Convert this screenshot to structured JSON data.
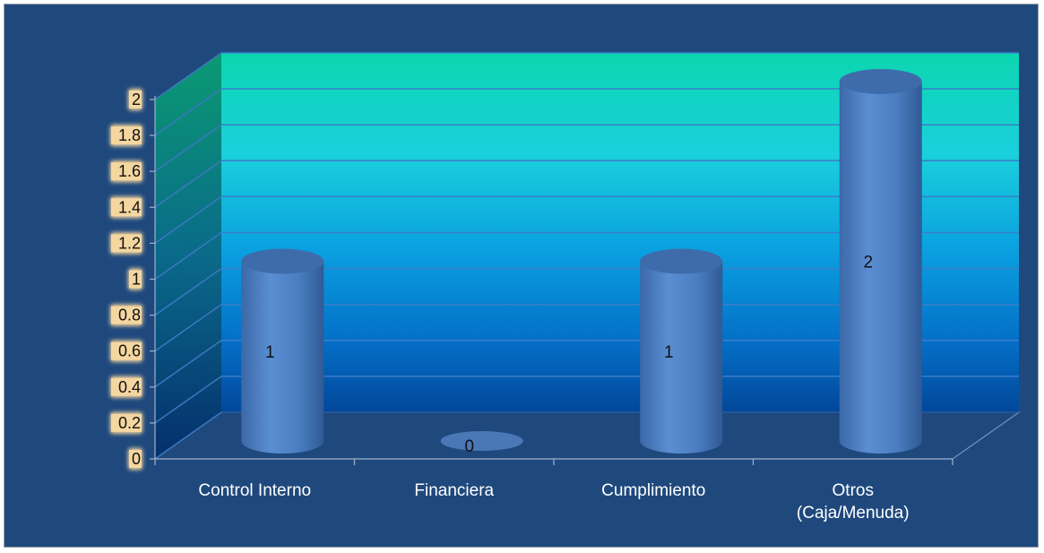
{
  "chart_data": {
    "type": "bar",
    "style": "3d-cylinder",
    "categories": [
      "Control Interno",
      "Financiera",
      "Cumplimiento",
      "Otros (Caja/Menuda)"
    ],
    "category_lines": [
      [
        "Control Interno"
      ],
      [
        "Financiera"
      ],
      [
        "Cumplimiento"
      ],
      [
        "Otros",
        "(Caja/Menuda)"
      ]
    ],
    "values": [
      1,
      0,
      1,
      2
    ],
    "data_labels": [
      "1",
      "0",
      "1",
      "2"
    ],
    "ylim": [
      0,
      2
    ],
    "yticks": [
      "0",
      "0.2",
      "0.4",
      "0.6",
      "0.8",
      "1",
      "1.2",
      "1.4",
      "1.6",
      "1.8",
      "2"
    ],
    "grid": true,
    "legend": "none",
    "colors": {
      "frame_background": "#1f497d",
      "bar": "#4f81bd",
      "wall_top": "#10d6b4",
      "wall_bottom": "#0050a8",
      "gridline": "#2f6db3",
      "tick_label_bg": "#f4d6a0"
    }
  }
}
